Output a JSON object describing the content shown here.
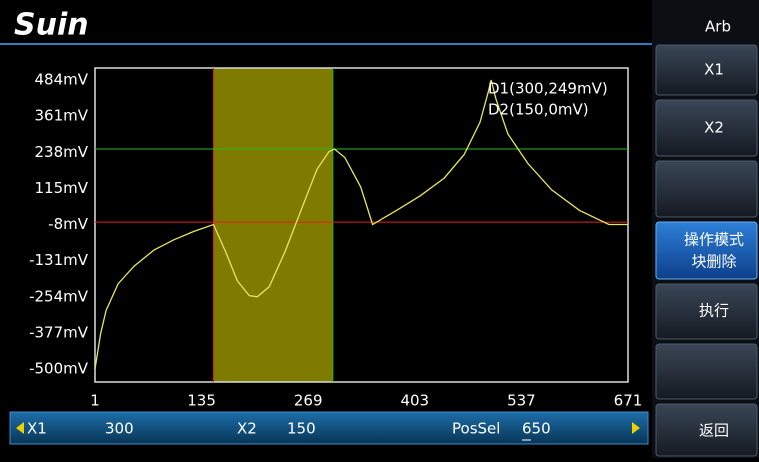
{
  "header": {
    "logo": "Suin",
    "mode": "Arb"
  },
  "menu": {
    "x1": "X1",
    "x2": "X2",
    "operation": [
      "操作模式",
      "块删除"
    ],
    "execute": "执行",
    "back": "返回"
  },
  "plot": {
    "xlim": [
      1,
      671
    ],
    "ylim": [
      -500,
      484
    ],
    "xticks": [
      1,
      135,
      269,
      403,
      537,
      671
    ],
    "yticks": [
      {
        "value": 484,
        "label": "484mV"
      },
      {
        "value": 361,
        "label": "361mV"
      },
      {
        "value": 238,
        "label": "238mV"
      },
      {
        "value": 115,
        "label": "115mV"
      },
      {
        "value": -8,
        "label": "-8mV"
      },
      {
        "value": -131,
        "label": "-131mV"
      },
      {
        "value": -254,
        "label": "-254mV"
      },
      {
        "value": -377,
        "label": "-377mV"
      },
      {
        "value": -500,
        "label": "-500mV"
      }
    ],
    "d1_label": "D1(300,249mV)",
    "d2_label": "D2(150,0mV)",
    "d1_level": 249,
    "d2_level": 0,
    "waveform": {
      "color": "#e6e65c",
      "x": [
        1,
        8,
        15,
        30,
        50,
        75,
        100,
        125,
        150,
        165,
        180,
        195,
        205,
        220,
        240,
        260,
        280,
        295,
        302,
        315,
        335,
        350,
        380,
        410,
        440,
        465,
        485,
        495,
        499,
        505,
        520,
        545,
        575,
        610,
        647,
        671
      ],
      "y": [
        -500,
        -380,
        -300,
        -210,
        -150,
        -95,
        -60,
        -32,
        -8,
        -100,
        -200,
        -250,
        -254,
        -220,
        -100,
        40,
        180,
        240,
        249,
        220,
        120,
        -8,
        40,
        90,
        150,
        230,
        340,
        440,
        484,
        420,
        300,
        200,
        110,
        40,
        -8,
        -8
      ]
    }
  },
  "status": {
    "x1_label": "X1",
    "x1": 300,
    "x2_label": "X2",
    "x2": 150,
    "possel_label": "PosSel",
    "possel": 650
  }
}
